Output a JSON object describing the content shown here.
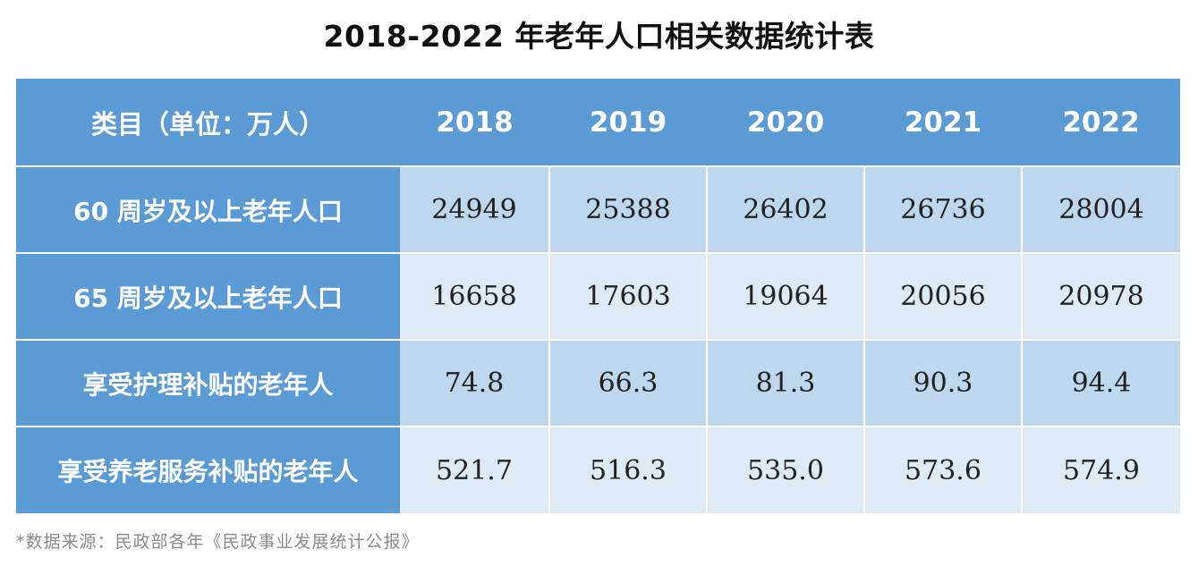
{
  "title": "2018-2022 年老年人口相关数据统计表",
  "table": {
    "header_label": "类目（单位：万人）",
    "years": [
      "2018",
      "2019",
      "2020",
      "2021",
      "2022"
    ],
    "rows": [
      {
        "label": "60 周岁及以上老年人口",
        "values": [
          "24949",
          "25388",
          "26402",
          "26736",
          "28004"
        ]
      },
      {
        "label": "65 周岁及以上老年人口",
        "values": [
          "16658",
          "17603",
          "19064",
          "20056",
          "20978"
        ]
      },
      {
        "label": "享受护理补贴的老年人",
        "values": [
          "74.8",
          "66.3",
          "81.3",
          "90.3",
          "94.4"
        ]
      },
      {
        "label": "享受养老服务补贴的老年人",
        "values": [
          "521.7",
          "516.3",
          "535.0",
          "573.6",
          "574.9"
        ]
      }
    ]
  },
  "source": "*数据来源：民政部各年《民政事业发展统计公报》",
  "colors": {
    "header_blue": "#5b9bd5",
    "row_dark": "#bdd7ee",
    "row_light": "#ddebf7",
    "source_gray": "#8c8c8c"
  }
}
